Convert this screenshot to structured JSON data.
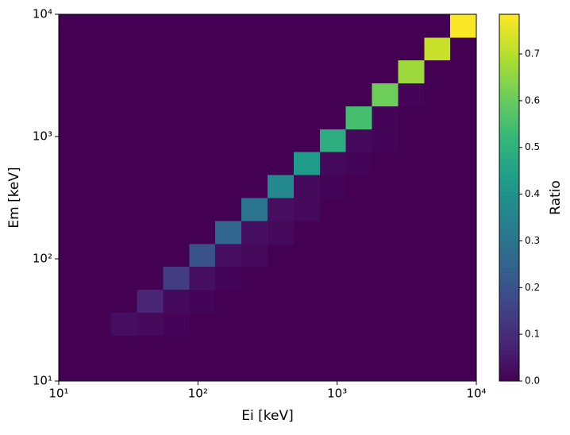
{
  "chart_data": {
    "type": "heatmap",
    "xlabel": "Ei [keV]",
    "ylabel": "Em [keV]",
    "colorbar_label": "Ratio",
    "colormap": "viridis",
    "xscale": "log",
    "yscale": "log",
    "xlim": [
      10,
      10000
    ],
    "ylim": [
      10,
      10000
    ],
    "xticks": [
      {
        "value": 10,
        "label": "10¹"
      },
      {
        "value": 100,
        "label": "10²"
      },
      {
        "value": 1000,
        "label": "10³"
      },
      {
        "value": 10000,
        "label": "10⁴"
      }
    ],
    "yticks": [
      {
        "value": 10,
        "label": "10¹"
      },
      {
        "value": 100,
        "label": "10²"
      },
      {
        "value": 1000,
        "label": "10³"
      },
      {
        "value": 10000,
        "label": "10⁴"
      }
    ],
    "xbins": [
      10,
      15.4,
      23.7,
      36.5,
      56.2,
      86.6,
      133,
      205,
      316,
      487,
      750,
      1155,
      1778,
      2738,
      4217,
      6494,
      10000
    ],
    "ybins": [
      10,
      15.4,
      23.7,
      36.5,
      56.2,
      86.6,
      133,
      205,
      316,
      487,
      750,
      1155,
      1778,
      2738,
      4217,
      6494,
      10000
    ],
    "z": [
      [
        0,
        0,
        0,
        0,
        0,
        0,
        0,
        0,
        0,
        0,
        0,
        0,
        0,
        0,
        0,
        0
      ],
      [
        0,
        0,
        0,
        0,
        0,
        0,
        0,
        0,
        0,
        0,
        0,
        0,
        0,
        0,
        0,
        0
      ],
      [
        0,
        0,
        0.03,
        0.02,
        0.01,
        0,
        0,
        0,
        0,
        0,
        0,
        0,
        0,
        0,
        0,
        0
      ],
      [
        0,
        0,
        0,
        0.08,
        0.02,
        0.01,
        0,
        0,
        0,
        0,
        0,
        0,
        0,
        0,
        0,
        0
      ],
      [
        0,
        0,
        0,
        0,
        0.14,
        0.03,
        0.01,
        0,
        0,
        0,
        0,
        0,
        0,
        0,
        0,
        0
      ],
      [
        0,
        0,
        0,
        0,
        0,
        0.2,
        0.03,
        0.02,
        0,
        0,
        0,
        0,
        0,
        0,
        0,
        0
      ],
      [
        0,
        0,
        0,
        0,
        0,
        0,
        0.26,
        0.03,
        0.02,
        0,
        0,
        0,
        0,
        0,
        0,
        0
      ],
      [
        0,
        0,
        0,
        0,
        0,
        0,
        0,
        0.31,
        0.03,
        0.02,
        0,
        0,
        0,
        0,
        0,
        0
      ],
      [
        0,
        0,
        0,
        0,
        0,
        0,
        0,
        0,
        0.37,
        0.02,
        0.01,
        0,
        0,
        0,
        0,
        0
      ],
      [
        0,
        0,
        0,
        0,
        0,
        0,
        0,
        0,
        0,
        0.43,
        0.02,
        0.01,
        0,
        0,
        0,
        0
      ],
      [
        0,
        0,
        0,
        0,
        0,
        0,
        0,
        0,
        0,
        0,
        0.49,
        0.02,
        0.01,
        0,
        0,
        0
      ],
      [
        0,
        0,
        0,
        0,
        0,
        0,
        0,
        0,
        0,
        0,
        0,
        0.55,
        0.01,
        0,
        0,
        0
      ],
      [
        0,
        0,
        0,
        0,
        0,
        0,
        0,
        0,
        0,
        0,
        0,
        0,
        0.61,
        0.01,
        0,
        0
      ],
      [
        0,
        0,
        0,
        0,
        0,
        0,
        0,
        0,
        0,
        0,
        0,
        0,
        0,
        0.67,
        0,
        0
      ],
      [
        0,
        0,
        0,
        0,
        0,
        0,
        0,
        0,
        0,
        0,
        0,
        0,
        0,
        0,
        0.72,
        0
      ],
      [
        0,
        0,
        0,
        0,
        0,
        0,
        0,
        0,
        0,
        0,
        0,
        0,
        0,
        0,
        0,
        0.78
      ]
    ],
    "clim": [
      0,
      0.785
    ],
    "cticks": [
      {
        "value": 0,
        "label": "0.0"
      },
      0.1,
      0.2,
      0.3,
      0.4,
      0.5,
      0.6,
      0.7
    ]
  }
}
